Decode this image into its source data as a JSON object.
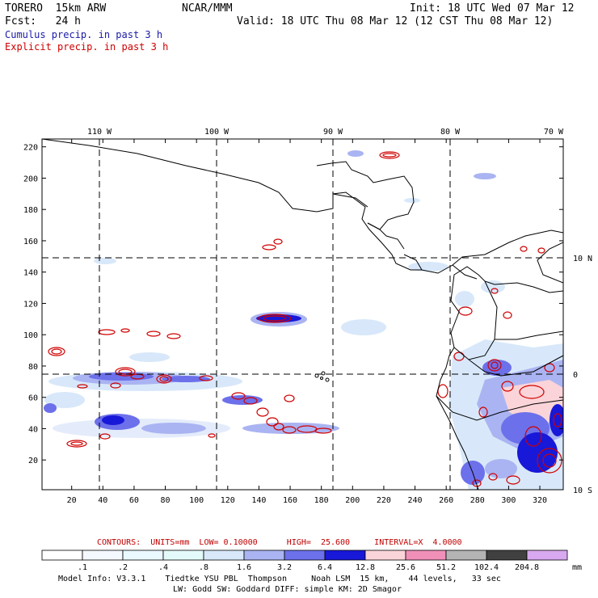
{
  "header": {
    "model": "TORERO  15km ARW",
    "org": "NCAR/MMM",
    "init": "Init: 18 UTC Wed 07 Mar 12",
    "fcst": "Fcst:   24 h",
    "valid": "Valid: 18 UTC Thu 08 Mar 12 (12 CST Thu 08 Mar 12)"
  },
  "legend": {
    "cumulus": "Cumulus precip. in past 3 h",
    "explicit": "Explicit precip. in past 3 h",
    "cumulus_color": "#1a1aa8",
    "explicit_color": "#d00000"
  },
  "map": {
    "lon_labels": [
      "110 W",
      "100 W",
      "90 W",
      "80 W",
      "70 W"
    ],
    "lat_labels": [
      "10 N",
      "0",
      "10 S"
    ],
    "x_ticks": [
      "20",
      "40",
      "60",
      "80",
      "100",
      "120",
      "140",
      "160",
      "180",
      "200",
      "220",
      "240",
      "260",
      "280",
      "300",
      "320"
    ],
    "y_ticks": [
      "20",
      "40",
      "60",
      "80",
      "100",
      "120",
      "140",
      "160",
      "180",
      "200",
      "220"
    ]
  },
  "contours": {
    "text": "CONTOURS:  UNITS=mm  LOW= 0.10000      HIGH=  25.600     INTERVAL=X  4.0000"
  },
  "colorbar": {
    "labels": [
      ".1",
      ".2",
      ".4",
      ".8",
      "1.6",
      "3.2",
      "6.4",
      "12.8",
      "25.6",
      "51.2",
      "102.4",
      "204.8"
    ],
    "unit": "mm",
    "colors": [
      "#ffffff",
      "#f4f8ff",
      "#eaf8ff",
      "#e4fafa",
      "#d8e8fa",
      "#aab4f2",
      "#6c70ea",
      "#1818d8",
      "#fad4d8",
      "#f090b8",
      "#b4b4b4",
      "#404040",
      "#d8a8f0"
    ]
  },
  "footer": {
    "line1": "Model Info: V3.3.1    Tiedtke YSU PBL  Thompson     Noah LSM  15 km,    44 levels,   33 sec",
    "line2": "LW: Godd SW: Goddard DIFF: simple KM: 2D Smagor"
  }
}
